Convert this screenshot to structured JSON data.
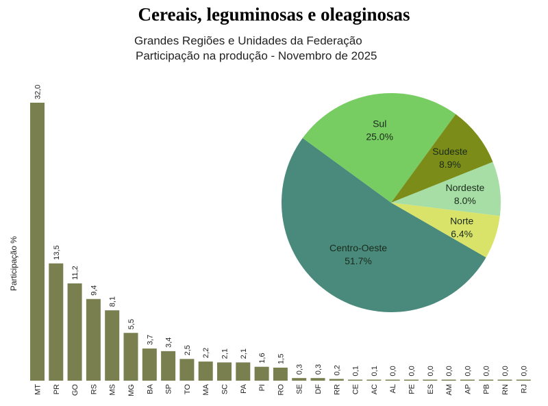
{
  "title": "Cereais, leguminosas e oleaginosas",
  "subtitle_1": "Grandes Regiões e Unidades da Federação",
  "subtitle_2": "Participação na produção - Novembro de 2025",
  "chart_data": [
    {
      "type": "bar",
      "ylabel": "Participação %",
      "categories": [
        "MT",
        "PR",
        "GO",
        "RS",
        "MS",
        "MG",
        "BA",
        "SP",
        "TO",
        "MA",
        "SC",
        "PA",
        "PI",
        "RO",
        "SE",
        "DF",
        "RR",
        "CE",
        "AC",
        "AL",
        "PE",
        "ES",
        "AM",
        "AP",
        "PB",
        "RN",
        "RJ"
      ],
      "values": [
        32.0,
        13.5,
        11.2,
        9.4,
        8.1,
        5.5,
        3.7,
        3.4,
        2.5,
        2.2,
        2.1,
        2.1,
        1.6,
        1.5,
        0.3,
        0.3,
        0.2,
        0.1,
        0.1,
        0.0,
        0.0,
        0.0,
        0.0,
        0.0,
        0.0,
        0.0,
        0.0
      ],
      "labels": [
        "32,0",
        "13,5",
        "11,2",
        "9,4",
        "8,1",
        "5,5",
        "3,7",
        "3,4",
        "2,5",
        "2,2",
        "2,1",
        "2,1",
        "1,6",
        "1,5",
        "0,3",
        "0,3",
        "0,2",
        "0,1",
        "0,1",
        "0,0",
        "0,0",
        "0,0",
        "0,0",
        "0,0",
        "0,0",
        "0,0",
        "0,0"
      ],
      "color": "#7a7f50",
      "grid": false
    },
    {
      "type": "pie",
      "slices": [
        {
          "name": "Centro-Oeste",
          "value": 51.7,
          "label": "51.7%",
          "color": "#4a8a7c"
        },
        {
          "name": "Sul",
          "value": 25.0,
          "label": "25.0%",
          "color": "#77cc62"
        },
        {
          "name": "Sudeste",
          "value": 8.9,
          "label": "8.9%",
          "color": "#7b8c18"
        },
        {
          "name": "Nordeste",
          "value": 8.0,
          "label": "8.0%",
          "color": "#a6dea6"
        },
        {
          "name": "Norte",
          "value": 6.4,
          "label": "6.4%",
          "color": "#d9e36a"
        }
      ]
    }
  ]
}
